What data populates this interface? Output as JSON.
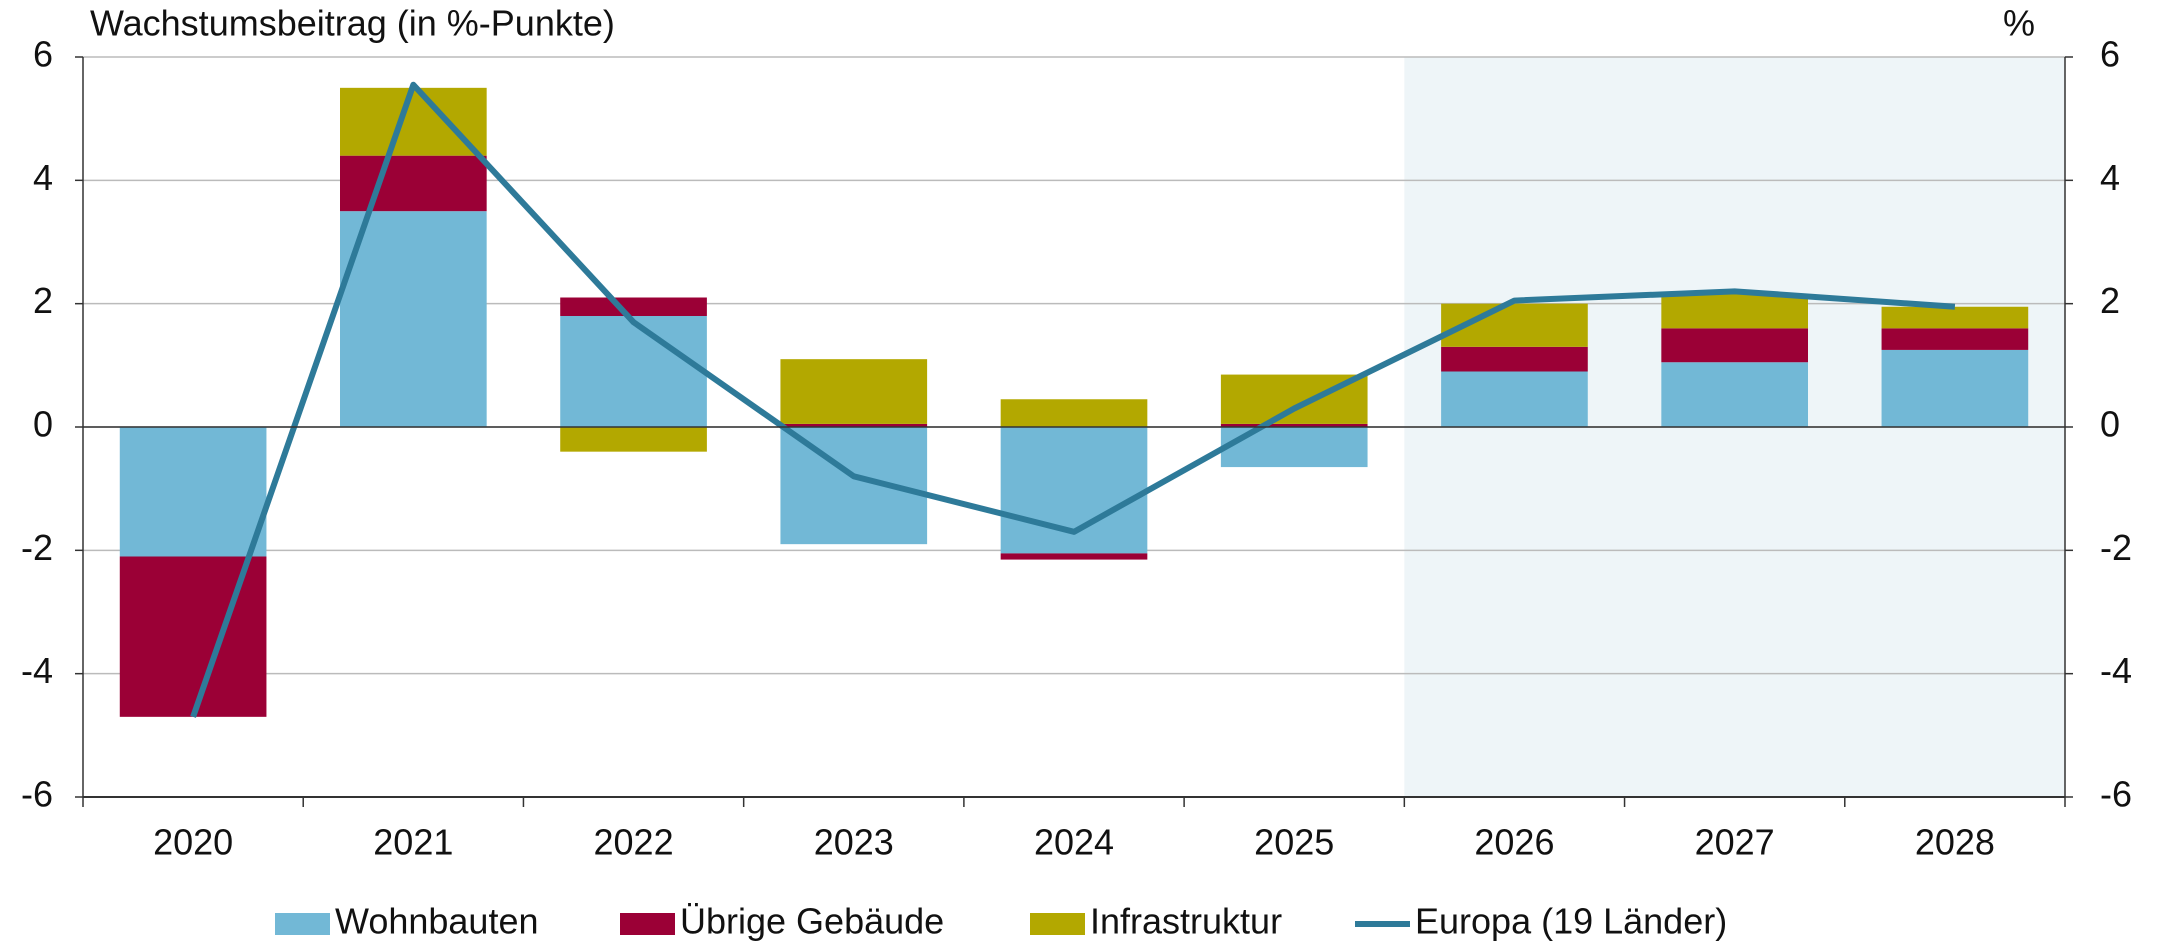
{
  "chart_data": {
    "type": "bar",
    "title": "Wachstumsbeitrag (in %-Punkte)",
    "y2_title": "%",
    "categories": [
      "2020",
      "2021",
      "2022",
      "2023",
      "2024",
      "2025",
      "2026",
      "2027",
      "2028"
    ],
    "series": [
      {
        "name": "Wohnbauten",
        "color": "#72b8d6",
        "values": [
          -2.1,
          3.5,
          1.8,
          -1.9,
          -2.05,
          -0.65,
          0.9,
          1.05,
          1.25
        ]
      },
      {
        "name": "Übrige Gebäude",
        "color": "#9b0036",
        "values": [
          -2.6,
          0.9,
          0.3,
          0.05,
          -0.1,
          0.05,
          0.4,
          0.55,
          0.35
        ]
      },
      {
        "name": "Infrastruktur",
        "color": "#b3a800",
        "values": [
          0,
          1.1,
          -0.4,
          1.05,
          0.45,
          0.8,
          0.7,
          0.55,
          0.35
        ]
      },
      {
        "name": "Europa (19 Länder)",
        "color": "#2e7a99",
        "type": "line",
        "axis": "y2",
        "values": [
          -4.7,
          5.55,
          1.7,
          -0.8,
          -1.7,
          0.3,
          2.05,
          2.2,
          1.95
        ]
      }
    ],
    "stacked": true,
    "ylim": [
      -6,
      6
    ],
    "yticks": [
      -6,
      -4,
      -2,
      0,
      2,
      4,
      6
    ],
    "y2lim": [
      -6,
      6
    ],
    "y2ticks": [
      -6,
      -4,
      -2,
      0,
      2,
      4,
      6
    ],
    "grid": true,
    "shaded_from": "2026",
    "legend": "bottom"
  }
}
